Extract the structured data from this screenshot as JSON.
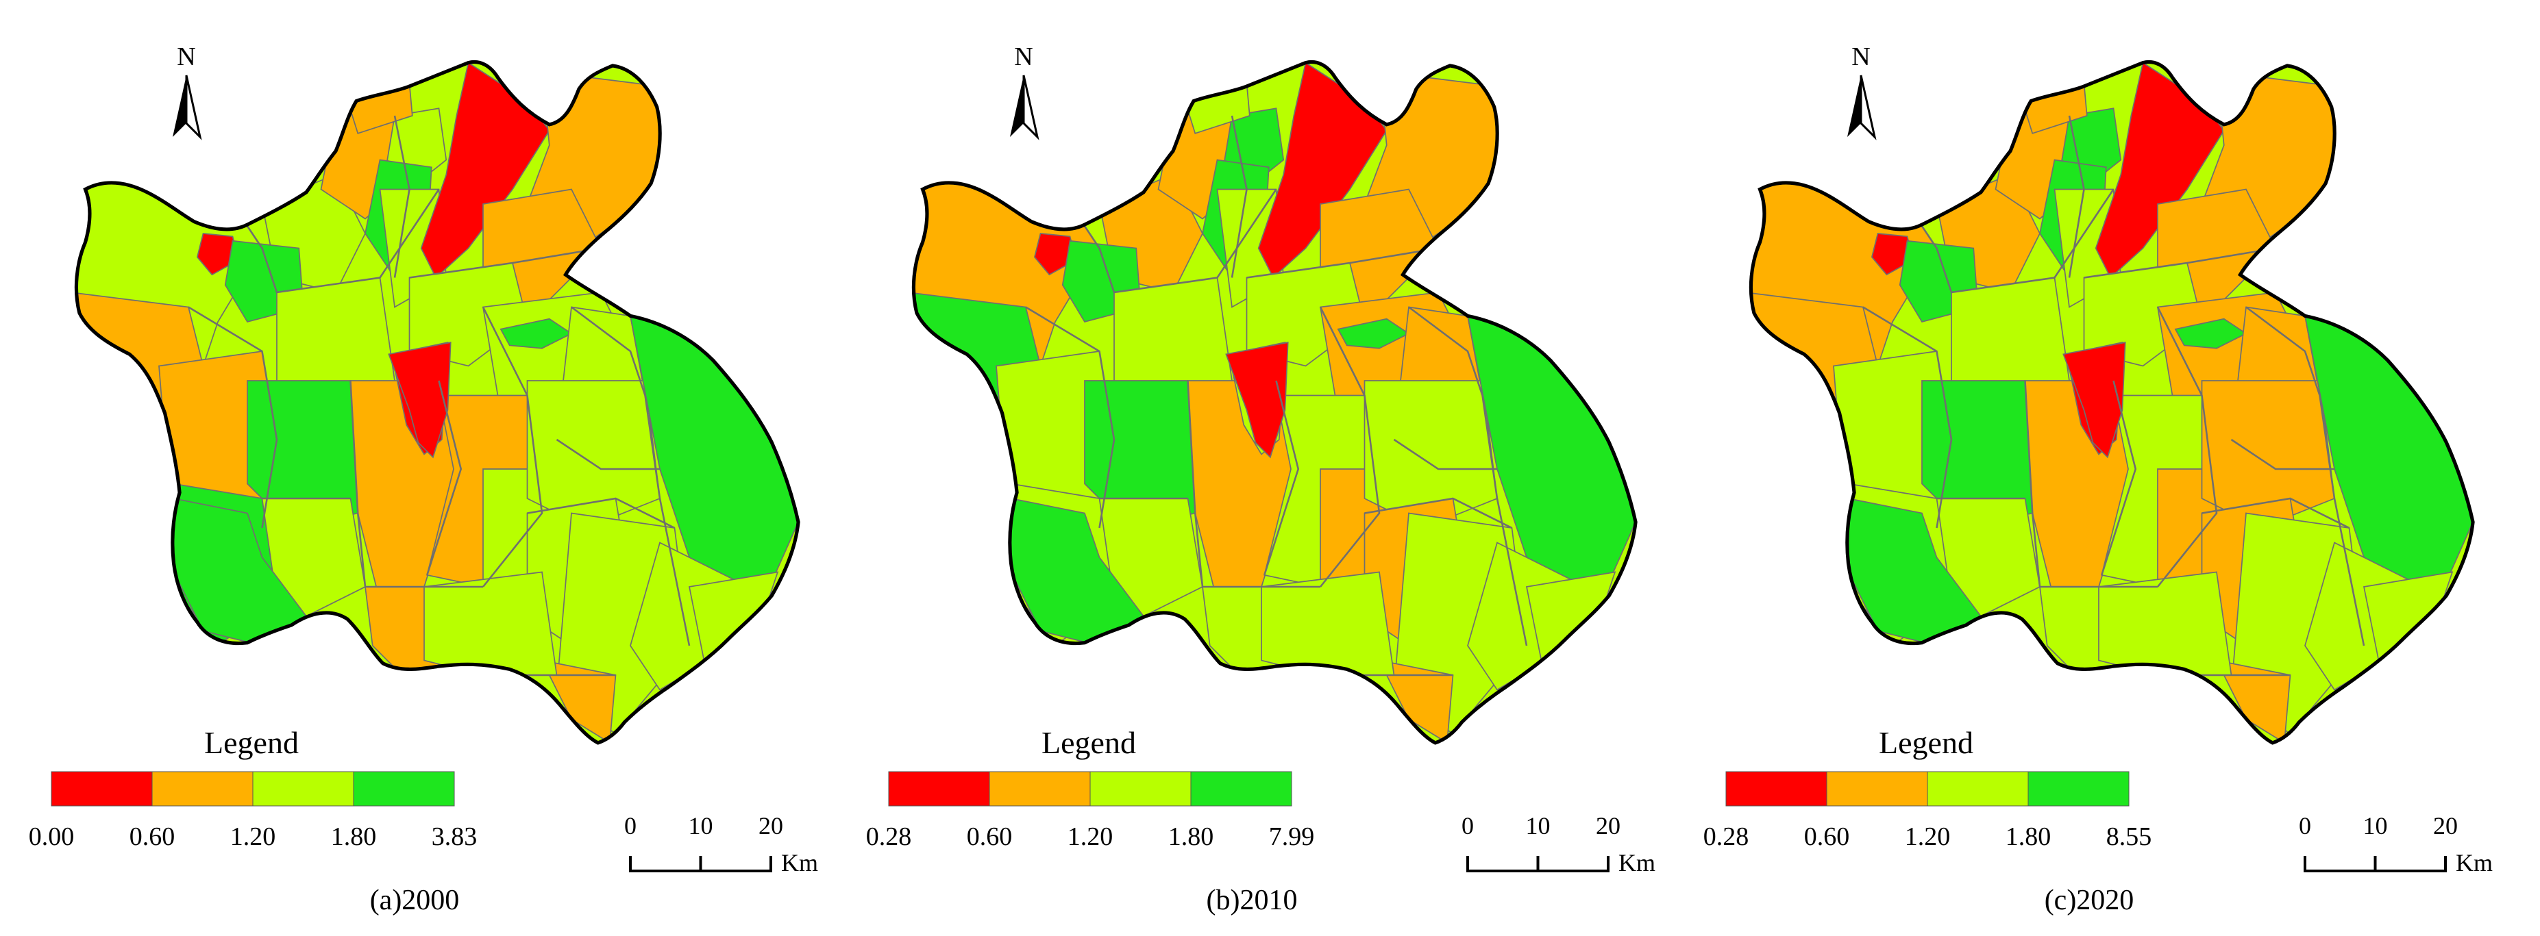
{
  "colors": {
    "class1": "#ff0000",
    "class2": "#ffb000",
    "class3": "#b8ff00",
    "class4": "#1ee61e",
    "boundary": "#000000",
    "inner_boundary": "#6f6f6f"
  },
  "north_arrow_label": "N",
  "legend_title": "Legend",
  "scale_ticks": [
    "0",
    "10",
    "20"
  ],
  "scale_unit": "Km",
  "panels": [
    {
      "caption": "(a)2000",
      "legend_ticks": [
        "0.00",
        "0.60",
        "1.20",
        "1.80",
        "3.83"
      ],
      "districts": [
        "class3",
        "class2",
        "class1",
        "class2",
        "class3",
        "class4",
        "class2",
        "class3",
        "class4",
        "class2",
        "class3",
        "class3",
        "class1",
        "class2",
        "class2",
        "class4",
        "class3",
        "class3",
        "class4",
        "class3",
        "class3",
        "class2",
        "class2",
        "class3",
        "class4",
        "class3",
        "class2",
        "class3",
        "class3",
        "class1",
        "class4",
        "class4",
        "class3",
        "class2",
        "class3",
        "class3",
        "class1",
        "class3"
      ]
    },
    {
      "caption": "(b)2010",
      "legend_ticks": [
        "0.28",
        "0.60",
        "1.20",
        "1.80",
        "7.99"
      ],
      "districts": [
        "class2",
        "class4",
        "class1",
        "class3",
        "class2",
        "class4",
        "class2",
        "class4",
        "class4",
        "class3",
        "class3",
        "class3",
        "class1",
        "class2",
        "class2",
        "class4",
        "class3",
        "class2",
        "class4",
        "class2",
        "class3",
        "class2",
        "class3",
        "class2",
        "class3",
        "class3",
        "class3",
        "class2",
        "class3",
        "class3",
        "class4",
        "class4",
        "class3",
        "class2",
        "class3",
        "class3",
        "class1",
        "class3"
      ]
    },
    {
      "caption": "(c)2020",
      "legend_ticks": [
        "0.28",
        "0.60",
        "1.20",
        "1.80",
        "8.55"
      ],
      "districts": [
        "class2",
        "class2",
        "class1",
        "class3",
        "class2",
        "class4",
        "class2",
        "class4",
        "class4",
        "class2",
        "class3",
        "class3",
        "class1",
        "class2",
        "class2",
        "class4",
        "class3",
        "class2",
        "class4",
        "class2",
        "class3",
        "class2",
        "class3",
        "class2",
        "class3",
        "class2",
        "class3",
        "class2",
        "class3",
        "class1",
        "class4",
        "class4",
        "class3",
        "class2",
        "class3",
        "class3",
        "class1",
        "class3"
      ]
    }
  ]
}
